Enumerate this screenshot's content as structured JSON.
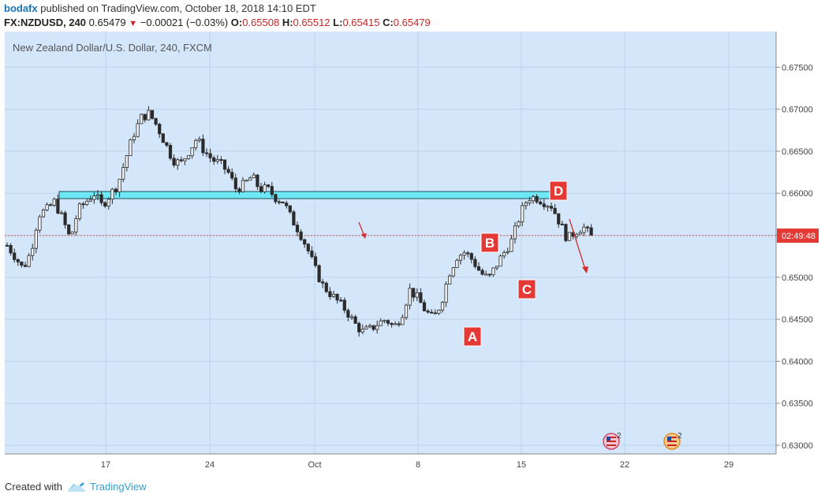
{
  "header": {
    "author": "bodafx",
    "published": "published on TradingView.com, October 18, 2018 14:10 EDT",
    "symbol": "FX:NZDUSD, 240",
    "last": "0.65479",
    "change_arrow": "▼",
    "change": "−0.00021 (−0.03%)",
    "o_label": "O:",
    "o": "0.65508",
    "h_label": "H:",
    "h": "0.65512",
    "l_label": "L:",
    "l": "0.65415",
    "c_label": "C:",
    "c": "0.65479"
  },
  "footer": {
    "created_with": "Created with",
    "brand": "TradingView",
    "brand_icon": "tradingview-cloud-icon"
  },
  "colors": {
    "background": "#d4e6fa",
    "grid": "#bcd3ec",
    "candle": "#2b2b2b",
    "zone_fill": "#6ee8f5",
    "label_red": "#e53935",
    "arrow": "#d32f2f",
    "price_line": "#e05050"
  },
  "chart_data": {
    "type": "candlestick",
    "title": "New Zealand Dollar/U.S. Dollar, 240, FXCM",
    "x_ticks": [
      "17",
      "24",
      "Oct",
      "8",
      "15",
      "22",
      "29"
    ],
    "y_ticks": [
      "0.63000",
      "0.63500",
      "0.64000",
      "0.64500",
      "0.65000",
      "0.65500",
      "0.66000",
      "0.66500",
      "0.67000",
      "0.67500"
    ],
    "ylim": [
      0.6292,
      0.6781
    ],
    "countdown_label": "02:49:48",
    "current_price": 0.65479,
    "resistance_zone": [
      0.6593,
      0.6601
    ],
    "wave_labels": [
      {
        "text": "A",
        "price": 0.6429,
        "date": "Oct 10"
      },
      {
        "text": "B",
        "price": 0.6541,
        "date": "Oct 12"
      },
      {
        "text": "C",
        "price": 0.6497,
        "date": "Oct 15"
      },
      {
        "text": "D",
        "price": 0.6599,
        "date": "Oct 17"
      }
    ],
    "event_flags": [
      {
        "icon": "us-flag-icon",
        "count": "2"
      },
      {
        "icon": "us-flag-icon",
        "count": "2"
      }
    ],
    "close_path": [
      0.6538,
      0.6525,
      0.651,
      0.653,
      0.6575,
      0.658,
      0.659,
      0.657,
      0.6545,
      0.658,
      0.659,
      0.66,
      0.6585,
      0.6598,
      0.661,
      0.664,
      0.667,
      0.669,
      0.6695,
      0.668,
      0.666,
      0.664,
      0.6635,
      0.665,
      0.6665,
      0.665,
      0.664,
      0.6635,
      0.6625,
      0.6605,
      0.661,
      0.662,
      0.6605,
      0.6605,
      0.6595,
      0.659,
      0.657,
      0.6555,
      0.6535,
      0.651,
      0.649,
      0.648,
      0.647,
      0.646,
      0.6445,
      0.6435,
      0.6438,
      0.6445,
      0.645,
      0.644,
      0.6455,
      0.6485,
      0.6475,
      0.646,
      0.645,
      0.647,
      0.6505,
      0.6525,
      0.653,
      0.652,
      0.6505,
      0.6498,
      0.6515,
      0.653,
      0.6545,
      0.6575,
      0.6595,
      0.6595,
      0.659,
      0.6585,
      0.6565,
      0.6545,
      0.6555,
      0.656,
      0.6548
    ]
  }
}
